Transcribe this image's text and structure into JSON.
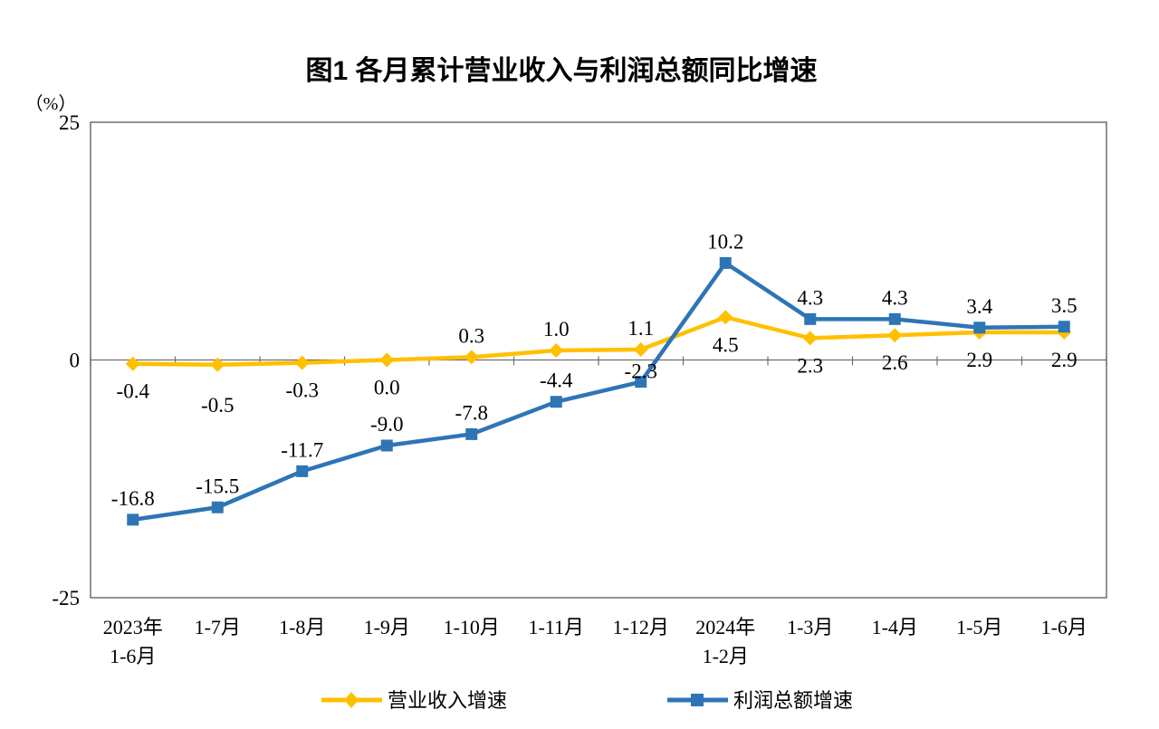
{
  "page": {
    "background": "#ffffff"
  },
  "chart_data": {
    "type": "line",
    "title": "图1  各月累计营业收入与利润总额同比增速",
    "unit_label": "（%）",
    "categories": [
      "2023年\n1-6月",
      "1-7月",
      "1-8月",
      "1-9月",
      "1-10月",
      "1-11月",
      "1-12月",
      "2024年\n1-2月",
      "1-3月",
      "1-4月",
      "1-5月",
      "1-6月"
    ],
    "y_axis": {
      "min": -25,
      "max": 25,
      "ticks": [
        25,
        0,
        -25
      ],
      "tick_labels": [
        "25",
        "0",
        "-25"
      ]
    },
    "grid": false,
    "legend_position": "bottom",
    "axis_color": "#6e6e6e",
    "series": [
      {
        "name": "营业收入增速",
        "color": "#FFC000",
        "marker": "diamond",
        "values": [
          -0.4,
          -0.5,
          -0.3,
          0.0,
          0.3,
          1.0,
          1.1,
          4.5,
          2.3,
          2.6,
          2.9,
          2.9
        ],
        "labels": [
          "-0.4",
          "-0.5",
          "-0.3",
          "0.0",
          "0.3",
          "1.0",
          "1.1",
          "4.5",
          "2.3",
          "2.6",
          "2.9",
          "2.9"
        ],
        "label_side": [
          "below",
          "below",
          "below",
          "below",
          "above",
          "above",
          "above",
          "below",
          "below",
          "below",
          "below",
          "below"
        ],
        "label_dy": [
          0,
          14,
          0,
          0,
          0,
          0,
          0,
          0,
          0,
          0,
          0,
          0
        ]
      },
      {
        "name": "利润总额增速",
        "color": "#2E75B6",
        "marker": "square",
        "values": [
          -16.8,
          -15.5,
          -11.7,
          -9.0,
          -7.8,
          -4.4,
          -2.3,
          10.2,
          4.3,
          4.3,
          3.4,
          3.5
        ],
        "labels": [
          "-16.8",
          "-15.5",
          "-11.7",
          "-9.0",
          "-7.8",
          "-4.4",
          "-2.3",
          "10.2",
          "4.3",
          "4.3",
          "3.4",
          "3.5"
        ],
        "label_side": [
          "above",
          "above",
          "above",
          "above",
          "above",
          "above",
          "above",
          "above",
          "above",
          "above",
          "above",
          "above"
        ],
        "label_dy": [
          0,
          0,
          0,
          0,
          0,
          0,
          12,
          0,
          0,
          0,
          0,
          0
        ]
      }
    ]
  }
}
